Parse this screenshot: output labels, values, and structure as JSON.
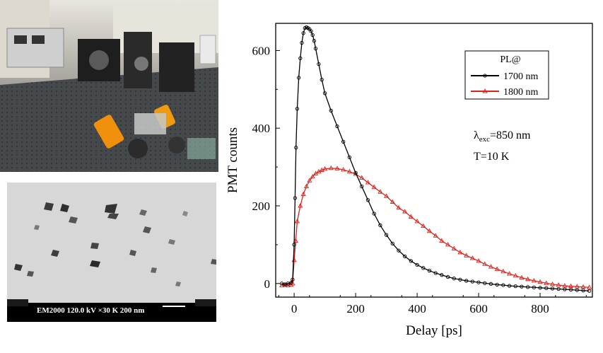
{
  "tem_caption": "EM2000 120.0 kV ×30 K  200 nm",
  "chart_data": {
    "type": "line",
    "xlabel": "Delay [ps]",
    "ylabel": "PMT counts",
    "xlim": [
      -60,
      970
    ],
    "ylim": [
      -35,
      670
    ],
    "xticks": [
      0,
      200,
      400,
      600,
      800
    ],
    "yticks": [
      0,
      200,
      400,
      600
    ],
    "grid": false,
    "legend": {
      "title": "PL@",
      "placement": "top-right"
    },
    "annotations": {
      "lambda_symbol": "λ",
      "lambda_subscript": "exc",
      "lambda_value": "=850 nm",
      "temperature": "T=10 K"
    },
    "series": [
      {
        "name": "1700 nm",
        "color": "#000000",
        "marker": "circle",
        "x": [
          -40,
          -30,
          -20,
          -10,
          -5,
          0,
          3,
          6,
          10,
          15,
          20,
          25,
          30,
          35,
          40,
          45,
          50,
          55,
          60,
          65,
          70,
          80,
          90,
          100,
          120,
          140,
          160,
          180,
          200,
          220,
          240,
          260,
          280,
          300,
          320,
          340,
          360,
          380,
          400,
          420,
          440,
          460,
          480,
          500,
          520,
          540,
          560,
          580,
          600,
          620,
          640,
          660,
          680,
          700,
          720,
          740,
          760,
          780,
          800,
          820,
          840,
          860,
          880,
          900,
          920,
          940,
          960
        ],
        "y": [
          0,
          -2,
          0,
          2,
          10,
          100,
          220,
          350,
          450,
          530,
          580,
          620,
          645,
          658,
          660,
          658,
          655,
          650,
          640,
          625,
          605,
          565,
          525,
          490,
          445,
          405,
          365,
          325,
          285,
          250,
          215,
          180,
          150,
          125,
          103,
          85,
          70,
          58,
          48,
          40,
          33,
          27,
          22,
          17,
          13,
          10,
          7,
          5,
          3,
          1,
          -1,
          -3,
          -4,
          -6,
          -7,
          -8,
          -9,
          -10,
          -11,
          -12,
          -13,
          -14,
          -15,
          -16,
          -17,
          -18,
          -19
        ]
      },
      {
        "name": "1800 nm",
        "color": "#e0201a",
        "marker": "triangle",
        "x": [
          -40,
          -30,
          -20,
          -10,
          -5,
          0,
          5,
          10,
          20,
          30,
          40,
          50,
          60,
          70,
          80,
          90,
          100,
          120,
          140,
          160,
          180,
          200,
          220,
          240,
          260,
          280,
          300,
          320,
          340,
          360,
          380,
          400,
          420,
          440,
          460,
          480,
          500,
          520,
          540,
          560,
          580,
          600,
          620,
          640,
          660,
          680,
          700,
          720,
          740,
          760,
          780,
          800,
          820,
          840,
          860,
          880,
          900,
          920,
          940,
          960
        ],
        "y": [
          -5,
          -4,
          -5,
          -3,
          0,
          60,
          110,
          160,
          200,
          230,
          250,
          265,
          275,
          283,
          288,
          292,
          295,
          297,
          296,
          293,
          288,
          282,
          272,
          260,
          248,
          236,
          225,
          210,
          195,
          185,
          172,
          160,
          148,
          135,
          123,
          110,
          100,
          90,
          80,
          72,
          65,
          58,
          50,
          43,
          37,
          31,
          25,
          20,
          15,
          11,
          7,
          4,
          1,
          -2,
          -4,
          -6,
          -7,
          -8,
          -9,
          -10
        ]
      }
    ]
  }
}
